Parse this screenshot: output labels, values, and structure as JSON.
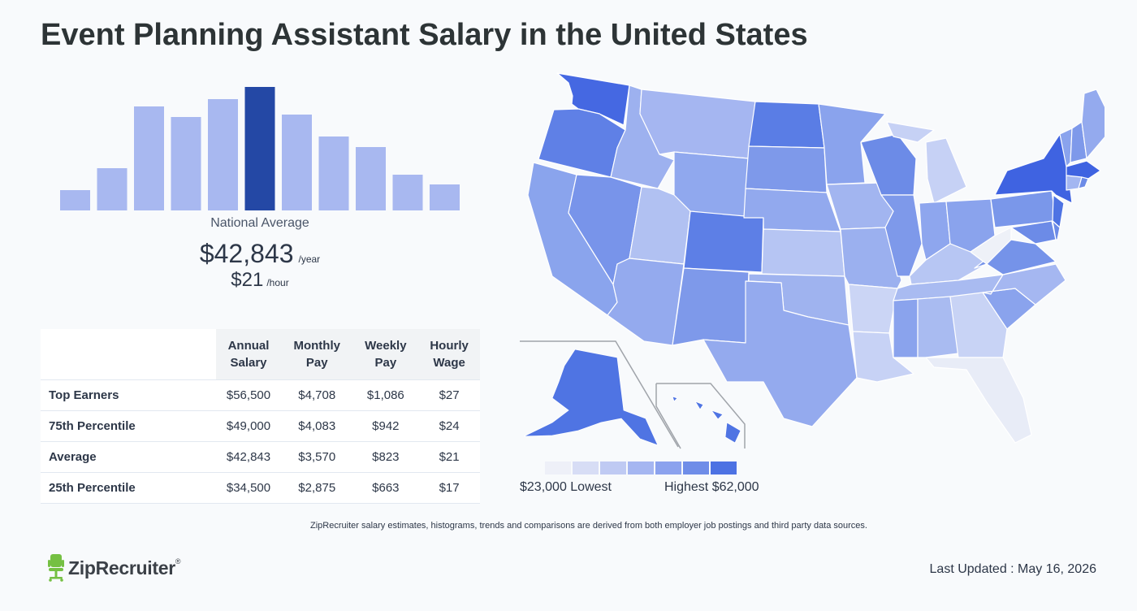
{
  "page": {
    "title": "Event Planning Assistant Salary in the United States"
  },
  "chart_data": [
    {
      "type": "bar",
      "categories": [
        "b1",
        "b2",
        "b3",
        "b4",
        "b5",
        "b6",
        "b7",
        "b8",
        "b9",
        "b10",
        "b11"
      ],
      "values": [
        25,
        52,
        128,
        115,
        137,
        152,
        118,
        91,
        78,
        44,
        32
      ],
      "highlight_index": 5,
      "colors": {
        "bar": "#a8b8f0",
        "highlight": "#2448a5"
      },
      "xlabel": "National Average"
    },
    {
      "type": "choropleth",
      "legend_low": "$23,000 Lowest",
      "legend_high": "Highest $62,000",
      "legend_colors": [
        "#eef0f8",
        "#d7ddf5",
        "#bfcaf3",
        "#a5b6f1",
        "#8ba2ee",
        "#6f8de8",
        "#4d72e3"
      ]
    }
  ],
  "national": {
    "label": "National Average",
    "annual": "$42,843",
    "annual_unit": "/year",
    "hourly": "$21",
    "hourly_unit": "/hour"
  },
  "table": {
    "headers": [
      "Annual Salary",
      "Monthly Pay",
      "Weekly Pay",
      "Hourly Wage"
    ],
    "header_lines": [
      [
        "Annual",
        "Salary"
      ],
      [
        "Monthly",
        "Pay"
      ],
      [
        "Weekly",
        "Pay"
      ],
      [
        "Hourly",
        "Wage"
      ]
    ],
    "rows": [
      {
        "label": "Top Earners",
        "values": [
          "$56,500",
          "$4,708",
          "$1,086",
          "$27"
        ]
      },
      {
        "label": "75th Percentile",
        "values": [
          "$49,000",
          "$4,083",
          "$942",
          "$24"
        ]
      },
      {
        "label": "Average",
        "values": [
          "$42,843",
          "$3,570",
          "$823",
          "$21"
        ]
      },
      {
        "label": "25th Percentile",
        "values": [
          "$34,500",
          "$2,875",
          "$663",
          "$17"
        ]
      }
    ]
  },
  "footer": {
    "disclaimer": "ZipRecruiter salary estimates, histograms, trends and comparisons are derived from both employer job postings and third party data sources.",
    "brand": "ZipRecruiter",
    "brand_mark": "®",
    "updated": "Last Updated : May 16, 2026"
  },
  "icons": {
    "logo": "office-chair-icon"
  }
}
